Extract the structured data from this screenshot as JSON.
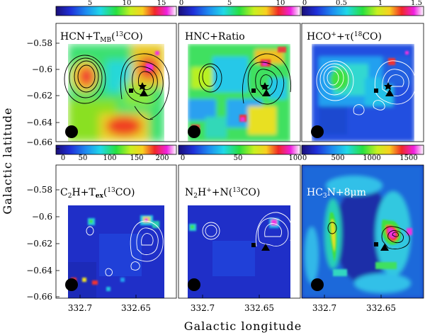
{
  "axes": {
    "ylabel": "Galactic latitude",
    "xlabel": "Galactic longitude",
    "x_ticks": [
      "332.7",
      "332.65"
    ],
    "y_ticks": [
      "−0.58",
      "−0.6",
      "−0.62",
      "−0.64",
      "−0.66"
    ]
  },
  "chart_data": [
    {
      "type": "heatmap",
      "panel": 1,
      "title_html": "HCN+T<tspan font-size='9' dy='3'>MB</tspan><tspan dy='-3'>(</tspan><tspan font-size='9' dy='-5'>13</tspan><tspan dy='5'>CO)</tspan>",
      "title": "HCN+T_MB(13CO)",
      "colorbar_ticks": [
        "5",
        "10",
        "15"
      ],
      "colorbar_range": [
        0,
        17
      ],
      "contour_color": "black",
      "xlim": [
        332.725,
        332.625
      ],
      "ylim": [
        -0.66,
        -0.57
      ]
    },
    {
      "type": "heatmap",
      "panel": 2,
      "title": "HNC+Ratio",
      "colorbar_ticks": [
        "0",
        "5",
        "10"
      ],
      "colorbar_range": [
        0,
        12
      ],
      "contour_color": "black"
    },
    {
      "type": "heatmap",
      "panel": 3,
      "title": "HCO+ +τ(18CO)",
      "colorbar_ticks": [
        "0",
        "0.5",
        "1",
        "1.5"
      ],
      "colorbar_range": [
        0,
        1.6
      ],
      "contour_color": "white"
    },
    {
      "type": "heatmap",
      "panel": 4,
      "title": "C2H+Tex(13CO)",
      "colorbar_ticks": [
        "0",
        "50",
        "100",
        "150",
        "200"
      ],
      "colorbar_range": [
        0,
        220
      ],
      "contour_color": "white"
    },
    {
      "type": "heatmap",
      "panel": 5,
      "title": "N2H+ +N(13CO)",
      "colorbar_ticks": [
        "0",
        "50",
        "100"
      ],
      "colorbar_range": [
        0,
        100
      ],
      "contour_color": "white"
    },
    {
      "type": "heatmap",
      "panel": 6,
      "title": "HC3N+8μm",
      "colorbar_ticks": [
        "0",
        "500",
        "1000",
        "1500"
      ],
      "colorbar_range": [
        0,
        1700
      ],
      "contour_color": "black"
    }
  ],
  "panel_titles": {
    "p1_a": "HCN+T",
    "p1_sub": "MB",
    "p1_b": "(",
    "p1_sup": "13",
    "p1_c": "CO)",
    "p2": "HNC+Ratio",
    "p3_a": "HCO",
    "p3_sup1": "+",
    "p3_b": "+τ(",
    "p3_sup2": "18",
    "p3_c": "CO)",
    "p4_a": "C",
    "p4_sub1": "2",
    "p4_b": "H+T",
    "p4_sub2": "ex",
    "p4_c": "(",
    "p4_sup": "13",
    "p4_d": "CO)",
    "p5_a": "N",
    "p5_sub": "2",
    "p5_b": "H",
    "p5_sup1": "+",
    "p5_c": "+N(",
    "p5_sup2": "13",
    "p5_d": "CO)",
    "p6_a": "HC",
    "p6_sub": "3",
    "p6_b": "N+8μm"
  }
}
